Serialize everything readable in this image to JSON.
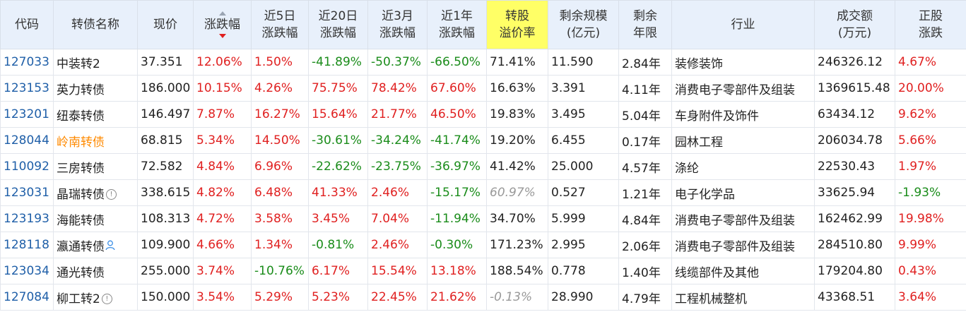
{
  "headers": [
    [
      "代码"
    ],
    [
      "转债名称"
    ],
    [
      "现价"
    ],
    [
      "涨跌幅"
    ],
    [
      "近5日",
      "涨跌幅"
    ],
    [
      "近20日",
      "涨跌幅"
    ],
    [
      "近3月",
      "涨跌幅"
    ],
    [
      "近1年",
      "涨跌幅"
    ],
    [
      "转股",
      "溢价率"
    ],
    [
      "剩余规模",
      "(亿元)"
    ],
    [
      "剩余",
      "年限"
    ],
    [
      "行业"
    ],
    [
      "成交额",
      "(万元)"
    ],
    [
      "正股",
      "涨跌"
    ]
  ],
  "highlight_header_color": "#ffff66",
  "sort_column": "涨跌幅",
  "rows": [
    {
      "code": "127033",
      "name": "中装转2",
      "name_style": "",
      "name_icon": "",
      "price": "37.351",
      "chg": "12.06%",
      "chg5": "1.50%",
      "chg20": "-41.89%",
      "chg3m": "-50.37%",
      "chg1y": "-66.50%",
      "premium": "71.41%",
      "premium_style": "",
      "size": "11.590",
      "years": "2.84年",
      "industry": "装修装饰",
      "turnover": "246326.12",
      "stock_chg": "4.67%"
    },
    {
      "code": "123153",
      "name": "英力转债",
      "name_style": "",
      "name_icon": "",
      "price": "186.000",
      "chg": "10.15%",
      "chg5": "4.26%",
      "chg20": "75.75%",
      "chg3m": "78.42%",
      "chg1y": "67.60%",
      "premium": "16.63%",
      "premium_style": "",
      "size": "3.391",
      "years": "4.11年",
      "industry": "消费电子零部件及组装",
      "turnover": "1369615.48",
      "stock_chg": "20.00%"
    },
    {
      "code": "123201",
      "name": "纽泰转债",
      "name_style": "",
      "name_icon": "",
      "price": "146.497",
      "chg": "7.87%",
      "chg5": "16.27%",
      "chg20": "15.64%",
      "chg3m": "21.77%",
      "chg1y": "46.50%",
      "premium": "19.83%",
      "premium_style": "",
      "size": "3.495",
      "years": "5.04年",
      "industry": "车身附件及饰件",
      "turnover": "63434.12",
      "stock_chg": "9.62%"
    },
    {
      "code": "128044",
      "name": "岭南转债",
      "name_style": "orange",
      "name_icon": "",
      "price": "68.815",
      "chg": "5.34%",
      "chg5": "14.50%",
      "chg20": "-30.61%",
      "chg3m": "-34.24%",
      "chg1y": "-41.74%",
      "premium": "19.20%",
      "premium_style": "",
      "size": "6.455",
      "years": "0.17年",
      "industry": "园林工程",
      "turnover": "206034.78",
      "stock_chg": "5.66%"
    },
    {
      "code": "110092",
      "name": "三房转债",
      "name_style": "",
      "name_icon": "",
      "price": "72.582",
      "chg": "4.84%",
      "chg5": "6.96%",
      "chg20": "-22.62%",
      "chg3m": "-23.75%",
      "chg1y": "-36.97%",
      "premium": "41.42%",
      "premium_style": "",
      "size": "25.000",
      "years": "4.57年",
      "industry": "涤纶",
      "turnover": "22530.43",
      "stock_chg": "1.97%"
    },
    {
      "code": "123031",
      "name": "晶瑞转债",
      "name_style": "",
      "name_icon": "info-icon",
      "price": "338.615",
      "chg": "4.82%",
      "chg5": "6.48%",
      "chg20": "41.33%",
      "chg3m": "2.46%",
      "chg1y": "-15.17%",
      "premium": "60.97%",
      "premium_style": "gray",
      "size": "0.527",
      "years": "1.21年",
      "industry": "电子化学品",
      "turnover": "33625.94",
      "stock_chg": "-1.93%"
    },
    {
      "code": "123193",
      "name": "海能转债",
      "name_style": "",
      "name_icon": "",
      "price": "108.313",
      "chg": "4.72%",
      "chg5": "3.58%",
      "chg20": "3.45%",
      "chg3m": "7.04%",
      "chg1y": "-11.94%",
      "premium": "34.70%",
      "premium_style": "",
      "size": "5.999",
      "years": "4.84年",
      "industry": "消费电子零部件及组装",
      "turnover": "162462.99",
      "stock_chg": "19.98%"
    },
    {
      "code": "128118",
      "name": "瀛通转债",
      "name_style": "",
      "name_icon": "user-icon",
      "price": "109.900",
      "chg": "4.66%",
      "chg5": "1.34%",
      "chg20": "-0.81%",
      "chg3m": "2.46%",
      "chg1y": "-0.30%",
      "premium": "171.23%",
      "premium_style": "",
      "size": "2.995",
      "years": "2.06年",
      "industry": "消费电子零部件及组装",
      "turnover": "284510.80",
      "stock_chg": "9.99%"
    },
    {
      "code": "123034",
      "name": "通光转债",
      "name_style": "",
      "name_icon": "",
      "price": "255.000",
      "chg": "3.74%",
      "chg5": "-10.76%",
      "chg20": "6.17%",
      "chg3m": "15.54%",
      "chg1y": "13.18%",
      "premium": "188.54%",
      "premium_style": "",
      "size": "0.778",
      "years": "1.40年",
      "industry": "线缆部件及其他",
      "turnover": "179204.80",
      "stock_chg": "0.43%"
    },
    {
      "code": "127084",
      "name": "柳工转2",
      "name_style": "",
      "name_icon": "info-icon",
      "price": "150.000",
      "chg": "3.54%",
      "chg5": "5.29%",
      "chg20": "5.23%",
      "chg3m": "22.45%",
      "chg1y": "21.62%",
      "premium": "-0.13%",
      "premium_style": "gray",
      "size": "28.990",
      "years": "4.79年",
      "industry": "工程机械整机",
      "turnover": "43368.51",
      "stock_chg": "3.64%"
    }
  ]
}
